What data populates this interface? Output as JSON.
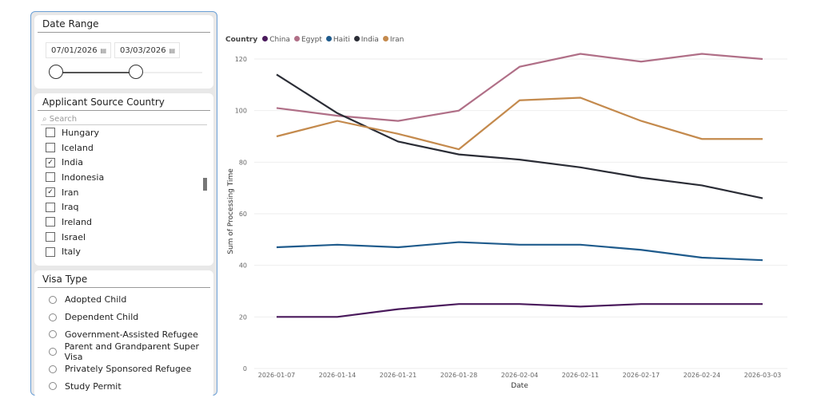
{
  "date_range": {
    "title": "Date Range",
    "start": "07/01/2026",
    "end": "03/03/2026",
    "slider_start_pct": 0,
    "slider_end_pct": 56
  },
  "country_filter": {
    "title": "Applicant Source Country",
    "search_placeholder": "Search",
    "items": [
      {
        "label": "Hungary",
        "checked": false
      },
      {
        "label": "Iceland",
        "checked": false
      },
      {
        "label": "India",
        "checked": true
      },
      {
        "label": "Indonesia",
        "checked": false
      },
      {
        "label": "Iran",
        "checked": true
      },
      {
        "label": "Iraq",
        "checked": false
      },
      {
        "label": "Ireland",
        "checked": false
      },
      {
        "label": "Israel",
        "checked": false
      },
      {
        "label": "Italy",
        "checked": false
      }
    ]
  },
  "visa_filter": {
    "title": "Visa Type",
    "items": [
      "Adopted Child",
      "Dependent Child",
      "Government-Assisted Refugee",
      "Parent and Grandparent Super Visa",
      "Privately Sponsored Refugee",
      "Study Permit"
    ]
  },
  "chart_data": {
    "type": "line",
    "legend_title": "Country",
    "legend_position": "top-left",
    "xlabel": "Date",
    "ylabel": "Sum of Processing Time",
    "ylim": [
      0,
      120
    ],
    "yticks": [
      0,
      20,
      40,
      60,
      80,
      100,
      120
    ],
    "grid": true,
    "categories": [
      "2026-01-07",
      "2026-01-14",
      "2026-01-21",
      "2026-01-28",
      "2026-02-04",
      "2026-02-11",
      "2026-02-17",
      "2026-02-24",
      "2026-03-03"
    ],
    "series": [
      {
        "name": "China",
        "color": "#4a1a5c",
        "values": [
          20,
          20,
          23,
          25,
          25,
          24,
          25,
          25,
          25
        ]
      },
      {
        "name": "Egypt",
        "color": "#b06f87",
        "values": [
          101,
          98,
          96,
          100,
          117,
          122,
          119,
          122,
          120
        ]
      },
      {
        "name": "Haiti",
        "color": "#1f5b8c",
        "values": [
          47,
          48,
          47,
          49,
          48,
          48,
          46,
          43,
          42
        ]
      },
      {
        "name": "India",
        "color": "#2b2d36",
        "values": [
          114,
          99,
          88,
          83,
          81,
          78,
          74,
          71,
          66
        ]
      },
      {
        "name": "Iran",
        "color": "#c48a4d",
        "values": [
          90,
          96,
          91,
          85,
          104,
          105,
          96,
          89,
          89
        ]
      }
    ]
  }
}
